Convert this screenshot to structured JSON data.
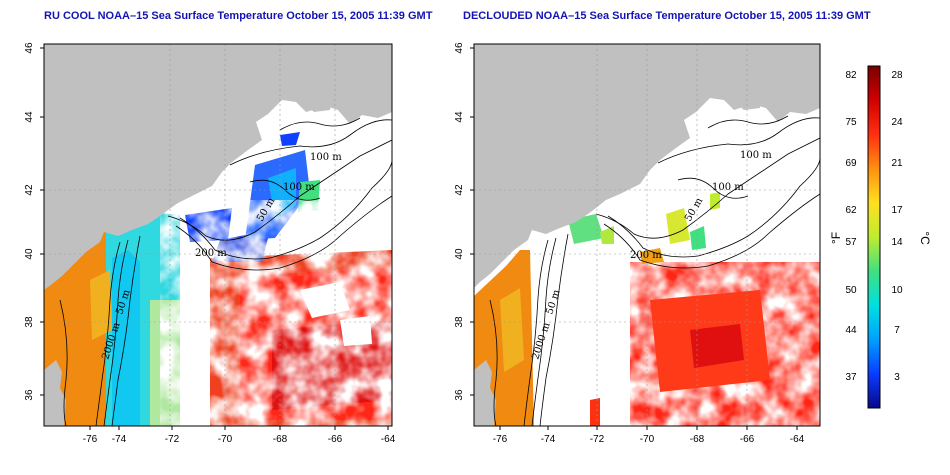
{
  "panels": [
    {
      "title": "RU COOL NOAA–15 Sea Surface Temperature October 15, 2005 11:39 GMT",
      "contour_labels": [
        "100 m",
        "100 m",
        "50 m",
        "200 m",
        "50 m",
        "2000 m"
      ]
    },
    {
      "title": "DECLOUDED NOAA–15 Sea Surface Temperature October 15, 2005 11:39 GMT",
      "contour_labels": [
        "100 m",
        "100 m",
        "50 m",
        "200 m",
        "50 m",
        "2000 m"
      ]
    }
  ],
  "axes": {
    "x_ticks": [
      "-76",
      "-74",
      "-72",
      "-70",
      "-68",
      "-66",
      "-64"
    ],
    "y_ticks": [
      "36",
      "38",
      "40",
      "42",
      "44",
      "46"
    ]
  },
  "colorbar": {
    "fahrenheit_unit": "°F",
    "celsius_unit": "°C",
    "fahrenheit_ticks": [
      "82",
      "75",
      "69",
      "62",
      "57",
      "50",
      "44",
      "37"
    ],
    "celsius_ticks": [
      "28",
      "24",
      "21",
      "17",
      "14",
      "10",
      "7",
      "3"
    ],
    "colors": [
      "#08088a",
      "#0a3cff",
      "#00a0ff",
      "#00e0e0",
      "#40e080",
      "#c0ec30",
      "#ffe020",
      "#ff9010",
      "#ff3010",
      "#d00000",
      "#7a0000"
    ]
  },
  "map_colors": {
    "land": "#c0c0c0",
    "ocean_nodata": "#ffffff"
  }
}
